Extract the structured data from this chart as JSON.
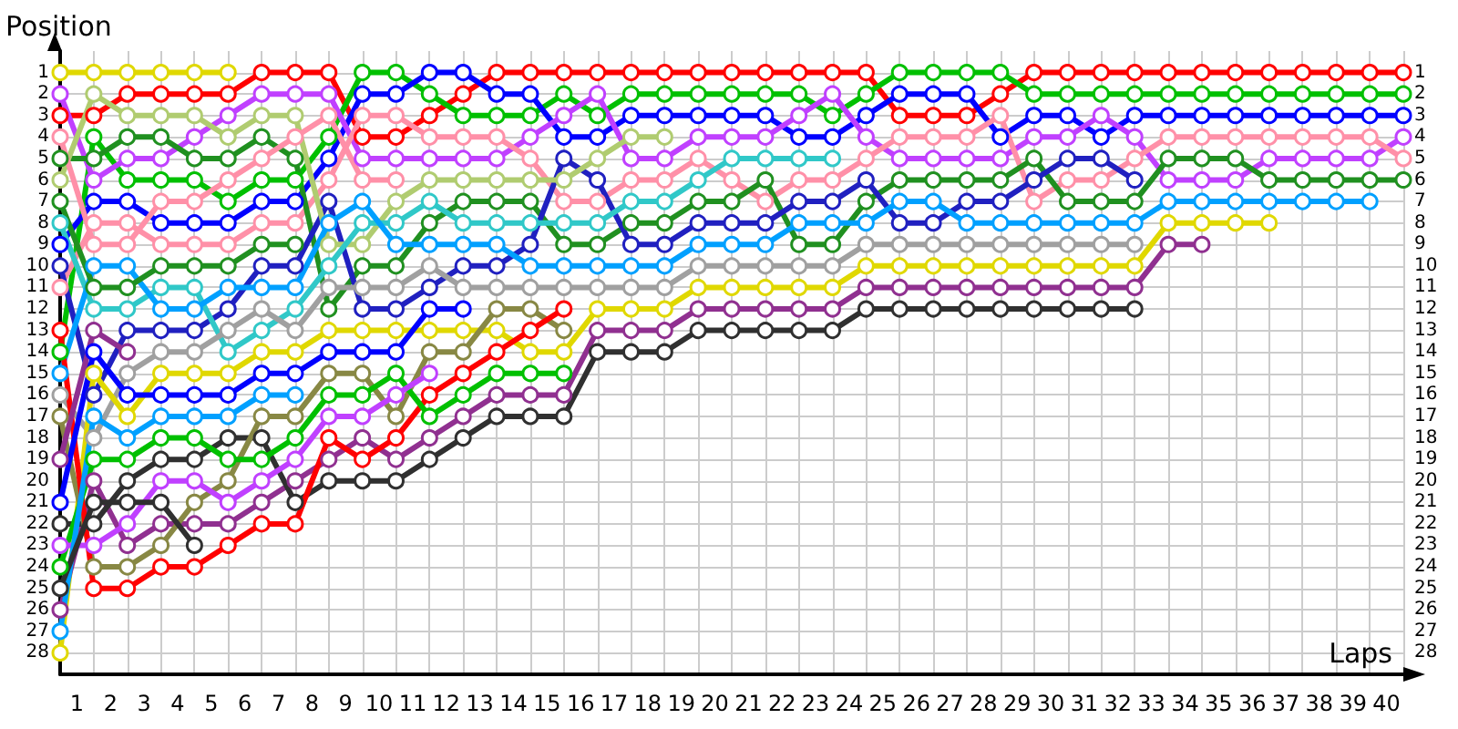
{
  "chart_data": {
    "type": "line",
    "xlabel": "Laps",
    "ylabel": "Position",
    "marker": "circle",
    "line_style": "solid",
    "grid": true,
    "x": [
      0,
      1,
      2,
      3,
      4,
      5,
      6,
      7,
      8,
      9,
      10,
      11,
      12,
      13,
      14,
      15,
      16,
      17,
      18,
      19,
      20,
      21,
      22,
      23,
      24,
      25,
      26,
      27,
      28,
      29,
      30,
      31,
      32,
      33,
      34,
      35,
      36,
      37,
      38,
      39,
      40
    ],
    "xlim": [
      0,
      40
    ],
    "xticks": [
      {
        "value": 0.5,
        "label": "1"
      },
      {
        "value": 1.5,
        "label": "2"
      },
      {
        "value": 2.5,
        "label": "3"
      },
      {
        "value": 3.5,
        "label": "4"
      },
      {
        "value": 4.5,
        "label": "5"
      },
      {
        "value": 5.5,
        "label": "6"
      },
      {
        "value": 6.5,
        "label": "7"
      },
      {
        "value": 7.5,
        "label": "8"
      },
      {
        "value": 8.5,
        "label": "9"
      },
      {
        "value": 9.5,
        "label": "10"
      },
      {
        "value": 10.5,
        "label": "11"
      },
      {
        "value": 11.5,
        "label": "12"
      },
      {
        "value": 12.5,
        "label": "13"
      },
      {
        "value": 13.5,
        "label": "14"
      },
      {
        "value": 14.5,
        "label": "15"
      },
      {
        "value": 15.5,
        "label": "16"
      },
      {
        "value": 16.5,
        "label": "17"
      },
      {
        "value": 17.5,
        "label": "18"
      },
      {
        "value": 18.5,
        "label": "19"
      },
      {
        "value": 19.5,
        "label": "20"
      },
      {
        "value": 20.5,
        "label": "21"
      },
      {
        "value": 21.5,
        "label": "22"
      },
      {
        "value": 22.5,
        "label": "23"
      },
      {
        "value": 23.5,
        "label": "24"
      },
      {
        "value": 24.5,
        "label": "25"
      },
      {
        "value": 25.5,
        "label": "26"
      },
      {
        "value": 26.5,
        "label": "27"
      },
      {
        "value": 27.5,
        "label": "28"
      },
      {
        "value": 28.5,
        "label": "29"
      },
      {
        "value": 29.5,
        "label": "30"
      },
      {
        "value": 30.5,
        "label": "31"
      },
      {
        "value": 31.5,
        "label": "32"
      },
      {
        "value": 32.5,
        "label": "33"
      },
      {
        "value": 33.5,
        "label": "34"
      },
      {
        "value": 34.5,
        "label": "35"
      },
      {
        "value": 35.5,
        "label": "36"
      },
      {
        "value": 36.5,
        "label": "37"
      },
      {
        "value": 37.5,
        "label": "38"
      },
      {
        "value": 38.5,
        "label": "39"
      },
      {
        "value": 39.5,
        "label": "40"
      }
    ],
    "ylim": [
      29,
      0
    ],
    "yticks": [
      1,
      2,
      3,
      4,
      5,
      6,
      7,
      8,
      9,
      10,
      11,
      12,
      13,
      14,
      15,
      16,
      17,
      18,
      19,
      20,
      21,
      22,
      23,
      24,
      25,
      26,
      27,
      28
    ],
    "y2lim": [
      29,
      0
    ],
    "y2ticks": [
      1,
      2,
      3,
      4,
      5,
      6,
      7,
      8,
      9,
      10,
      11,
      12,
      13,
      14,
      15,
      16,
      17,
      18,
      19,
      20,
      21,
      22,
      23,
      24,
      25,
      26,
      27,
      28
    ],
    "series": [
      {
        "color": "#ff0000",
        "values": [
          3,
          3,
          2,
          2,
          2,
          2,
          1,
          1,
          1,
          4,
          4,
          3,
          2,
          1,
          1,
          1,
          1,
          1,
          1,
          1,
          1,
          1,
          1,
          1,
          1,
          3,
          3,
          3,
          2,
          1,
          1,
          1,
          1,
          1,
          1,
          1,
          1,
          1,
          1,
          1,
          1
        ]
      },
      {
        "color": "#00c000",
        "values": [
          14,
          4,
          6,
          6,
          6,
          7,
          6,
          6,
          4,
          1,
          1,
          2,
          3,
          3,
          3,
          2,
          3,
          2,
          2,
          2,
          2,
          2,
          2,
          3,
          2,
          1,
          1,
          1,
          1,
          2,
          2,
          2,
          2,
          2,
          2,
          2,
          2,
          2,
          2,
          2,
          2
        ]
      },
      {
        "color": "#0000ff",
        "values": [
          9,
          7,
          7,
          8,
          8,
          8,
          7,
          7,
          5,
          2,
          2,
          1,
          1,
          2,
          2,
          4,
          4,
          3,
          3,
          3,
          3,
          3,
          4,
          4,
          3,
          2,
          2,
          2,
          4,
          3,
          3,
          4,
          3,
          3,
          3,
          3,
          3,
          3,
          3,
          3,
          3
        ]
      },
      {
        "color": "#c040ff",
        "values": [
          2,
          6,
          5,
          5,
          4,
          3,
          2,
          2,
          2,
          5,
          5,
          5,
          5,
          5,
          4,
          3,
          2,
          5,
          5,
          4,
          4,
          4,
          3,
          2,
          4,
          5,
          5,
          5,
          5,
          4,
          4,
          3,
          4,
          6,
          6,
          6,
          5,
          5,
          5,
          5,
          4
        ]
      },
      {
        "color": "#ff90a8",
        "values": [
          11,
          8,
          8,
          9,
          9,
          9,
          8,
          8,
          6,
          3,
          3,
          4,
          4,
          4,
          5,
          7,
          7,
          6,
          6,
          5,
          6,
          7,
          6,
          6,
          5,
          4,
          4,
          4,
          3,
          7,
          6,
          6,
          5,
          4,
          4,
          4,
          4,
          4,
          4,
          4,
          5
        ]
      },
      {
        "color": "#209020",
        "values": [
          5,
          5,
          4,
          4,
          5,
          5,
          4,
          5,
          12,
          10,
          10,
          8,
          7,
          7,
          7,
          9,
          9,
          8,
          8,
          7,
          7,
          6,
          9,
          9,
          7,
          6,
          6,
          6,
          6,
          5,
          7,
          7,
          7,
          5,
          5,
          5,
          6,
          6,
          6,
          6,
          6
        ]
      },
      {
        "color": "#2020c0",
        "values": [
          10,
          16,
          13,
          13,
          13,
          12,
          10,
          10,
          7,
          12,
          12,
          11,
          10,
          10,
          9,
          5,
          6,
          9,
          9,
          8,
          8,
          8,
          7,
          7,
          6,
          8,
          8,
          7,
          7,
          6,
          5,
          5,
          6,
          null,
          null,
          null,
          null,
          null,
          null,
          null,
          null
        ]
      },
      {
        "color": "#b0cc70",
        "values": [
          6,
          2,
          3,
          3,
          3,
          4,
          3,
          3,
          9,
          9,
          7,
          6,
          6,
          6,
          6,
          6,
          5,
          4,
          4,
          null,
          null,
          null,
          null,
          null,
          null,
          null,
          null,
          null,
          null,
          null,
          null,
          null,
          null,
          null,
          null,
          null,
          null,
          null,
          null,
          null,
          null
        ]
      },
      {
        "color": "#30c8c8",
        "values": [
          8,
          12,
          12,
          11,
          11,
          14,
          13,
          12,
          10,
          8,
          8,
          7,
          8,
          8,
          8,
          8,
          8,
          7,
          7,
          6,
          5,
          5,
          5,
          5,
          null,
          null,
          null,
          null,
          null,
          null,
          null,
          null,
          null,
          null,
          null,
          null,
          null,
          null,
          null,
          null,
          null
        ]
      },
      {
        "color": "#00a0ff",
        "values": [
          15,
          10,
          10,
          12,
          12,
          11,
          11,
          11,
          8,
          7,
          9,
          9,
          9,
          9,
          10,
          10,
          10,
          10,
          10,
          9,
          9,
          9,
          8,
          8,
          8,
          7,
          7,
          8,
          8,
          8,
          8,
          8,
          8,
          7,
          7,
          7,
          7,
          7,
          7,
          7,
          null
        ]
      },
      {
        "color": "#a0a0a0",
        "values": [
          16,
          18,
          15,
          14,
          14,
          13,
          12,
          13,
          11,
          11,
          11,
          10,
          11,
          11,
          11,
          11,
          11,
          11,
          11,
          10,
          10,
          10,
          10,
          10,
          9,
          9,
          9,
          9,
          9,
          9,
          9,
          9,
          9,
          null,
          null,
          null,
          null,
          null,
          null,
          null,
          null
        ]
      },
      {
        "color": "#e0d800",
        "values": [
          28,
          15,
          17,
          15,
          15,
          15,
          14,
          14,
          13,
          13,
          13,
          13,
          13,
          13,
          14,
          14,
          12,
          12,
          12,
          11,
          11,
          11,
          11,
          11,
          10,
          10,
          10,
          10,
          10,
          10,
          10,
          10,
          10,
          8,
          8,
          8,
          8,
          null,
          null,
          null,
          null
        ]
      },
      {
        "color": "#903090",
        "values": [
          26,
          20,
          23,
          22,
          22,
          22,
          21,
          20,
          19,
          18,
          19,
          18,
          17,
          16,
          16,
          16,
          13,
          13,
          13,
          12,
          12,
          12,
          12,
          12,
          11,
          11,
          11,
          11,
          11,
          11,
          11,
          11,
          11,
          9,
          9,
          null,
          null,
          null,
          null,
          null,
          null
        ]
      },
      {
        "color": "#303030",
        "values": [
          22,
          22,
          20,
          19,
          19,
          18,
          18,
          21,
          20,
          20,
          20,
          19,
          18,
          17,
          17,
          17,
          14,
          14,
          14,
          13,
          13,
          13,
          13,
          13,
          12,
          12,
          12,
          12,
          12,
          12,
          12,
          12,
          12,
          null,
          null,
          null,
          null,
          null,
          null,
          null,
          null
        ]
      },
      {
        "color": "#888844",
        "values": [
          17,
          24,
          24,
          23,
          21,
          20,
          17,
          17,
          15,
          15,
          17,
          14,
          14,
          12,
          12,
          13,
          null,
          null,
          null,
          null,
          null,
          null,
          null,
          null,
          null,
          null,
          null,
          null,
          null,
          null,
          null,
          null,
          null,
          null,
          null,
          null,
          null,
          null,
          null,
          null,
          null
        ]
      },
      {
        "color": "#ff0000",
        "values": [
          13,
          25,
          25,
          24,
          24,
          23,
          22,
          22,
          18,
          19,
          18,
          16,
          15,
          14,
          13,
          12,
          null,
          null,
          null,
          null,
          null,
          null,
          null,
          null,
          null,
          null,
          null,
          null,
          null,
          null,
          null,
          null,
          null,
          null,
          null,
          null,
          null,
          null,
          null,
          null,
          null
        ]
      },
      {
        "color": "#00c000",
        "values": [
          24,
          19,
          19,
          18,
          18,
          19,
          19,
          18,
          16,
          16,
          15,
          17,
          16,
          15,
          15,
          15,
          null,
          null,
          null,
          null,
          null,
          null,
          null,
          null,
          null,
          null,
          null,
          null,
          null,
          null,
          null,
          null,
          null,
          null,
          null,
          null,
          null,
          null,
          null,
          null,
          null
        ]
      },
      {
        "color": "#c040ff",
        "values": [
          23,
          23,
          22,
          20,
          20,
          21,
          20,
          19,
          17,
          17,
          16,
          15,
          null,
          null,
          null,
          null,
          null,
          null,
          null,
          null,
          null,
          null,
          null,
          null,
          null,
          null,
          null,
          null,
          null,
          null,
          null,
          null,
          null,
          null,
          null,
          null,
          null,
          null,
          null,
          null,
          null
        ]
      },
      {
        "color": "#0000ff",
        "values": [
          21,
          14,
          16,
          16,
          16,
          16,
          15,
          15,
          14,
          14,
          14,
          12,
          12,
          null,
          null,
          null,
          null,
          null,
          null,
          null,
          null,
          null,
          null,
          null,
          null,
          null,
          null,
          null,
          null,
          null,
          null,
          null,
          null,
          null,
          null,
          null,
          null,
          null,
          null,
          null,
          null
        ]
      },
      {
        "color": "#00a0ff",
        "values": [
          27,
          17,
          18,
          17,
          17,
          17,
          16,
          16,
          null,
          null,
          null,
          null,
          null,
          null,
          null,
          null,
          null,
          null,
          null,
          null,
          null,
          null,
          null,
          null,
          null,
          null,
          null,
          null,
          null,
          null,
          null,
          null,
          null,
          null,
          null,
          null,
          null,
          null,
          null,
          null,
          null
        ]
      },
      {
        "color": "#209020",
        "values": [
          7,
          11,
          11,
          10,
          10,
          10,
          9,
          9,
          null,
          null,
          null,
          null,
          null,
          null,
          null,
          null,
          null,
          null,
          null,
          null,
          null,
          null,
          null,
          null,
          null,
          null,
          null,
          null,
          null,
          null,
          null,
          null,
          null,
          null,
          null,
          null,
          null,
          null,
          null,
          null,
          null
        ]
      },
      {
        "color": "#ff90a8",
        "values": [
          4,
          9,
          9,
          7,
          7,
          6,
          5,
          4,
          3,
          6,
          6,
          null,
          null,
          null,
          null,
          null,
          null,
          null,
          null,
          null,
          null,
          null,
          null,
          null,
          null,
          null,
          null,
          null,
          null,
          null,
          null,
          null,
          null,
          null,
          null,
          null,
          null,
          null,
          null,
          null,
          null
        ]
      },
      {
        "color": "#e0d800",
        "values": [
          1,
          1,
          1,
          1,
          1,
          1,
          null,
          null,
          null,
          null,
          null,
          null,
          null,
          null,
          null,
          null,
          null,
          null,
          null,
          null,
          null,
          null,
          null,
          null,
          null,
          null,
          null,
          null,
          null,
          null,
          null,
          null,
          null,
          null,
          null,
          null,
          null,
          null,
          null,
          null,
          null
        ]
      },
      {
        "color": "#303030",
        "values": [
          25,
          21,
          21,
          21,
          23,
          null,
          null,
          null,
          null,
          null,
          null,
          null,
          null,
          null,
          null,
          null,
          null,
          null,
          null,
          null,
          null,
          null,
          null,
          null,
          null,
          null,
          null,
          null,
          null,
          null,
          null,
          null,
          null,
          null,
          null,
          null,
          null,
          null,
          null,
          null,
          null
        ]
      },
      {
        "color": "#903090",
        "values": [
          19,
          13,
          14,
          null,
          null,
          null,
          null,
          null,
          null,
          null,
          null,
          null,
          null,
          null,
          null,
          null,
          null,
          null,
          null,
          null,
          null,
          null,
          null,
          null,
          null,
          null,
          null,
          null,
          null,
          null,
          null,
          null,
          null,
          null,
          null,
          null,
          null,
          null,
          null,
          null,
          null
        ]
      }
    ]
  }
}
